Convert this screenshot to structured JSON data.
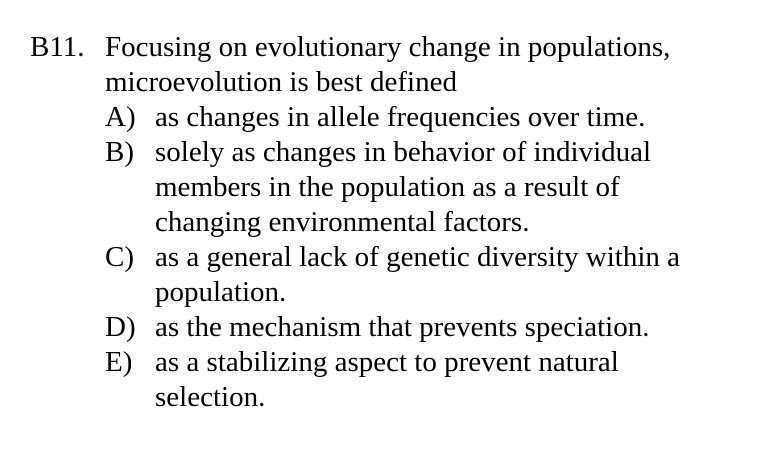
{
  "question": {
    "number": "B11.",
    "stem_lines": [
      "Focusing on evolutionary change in populations,",
      "microevolution is best defined"
    ],
    "options": [
      {
        "letter": "A)",
        "lines": [
          "as changes in allele frequencies over time."
        ]
      },
      {
        "letter": "B)",
        "lines": [
          "solely as changes in behavior of individual",
          "members in the population as a result of",
          "changing environmental factors."
        ]
      },
      {
        "letter": "C)",
        "lines": [
          "as a general lack of genetic diversity within a",
          "population."
        ]
      },
      {
        "letter": "D)",
        "lines": [
          "as the mechanism that prevents speciation."
        ]
      },
      {
        "letter": "E)",
        "lines": [
          "as a stabilizing aspect to prevent natural",
          "selection."
        ]
      }
    ]
  }
}
